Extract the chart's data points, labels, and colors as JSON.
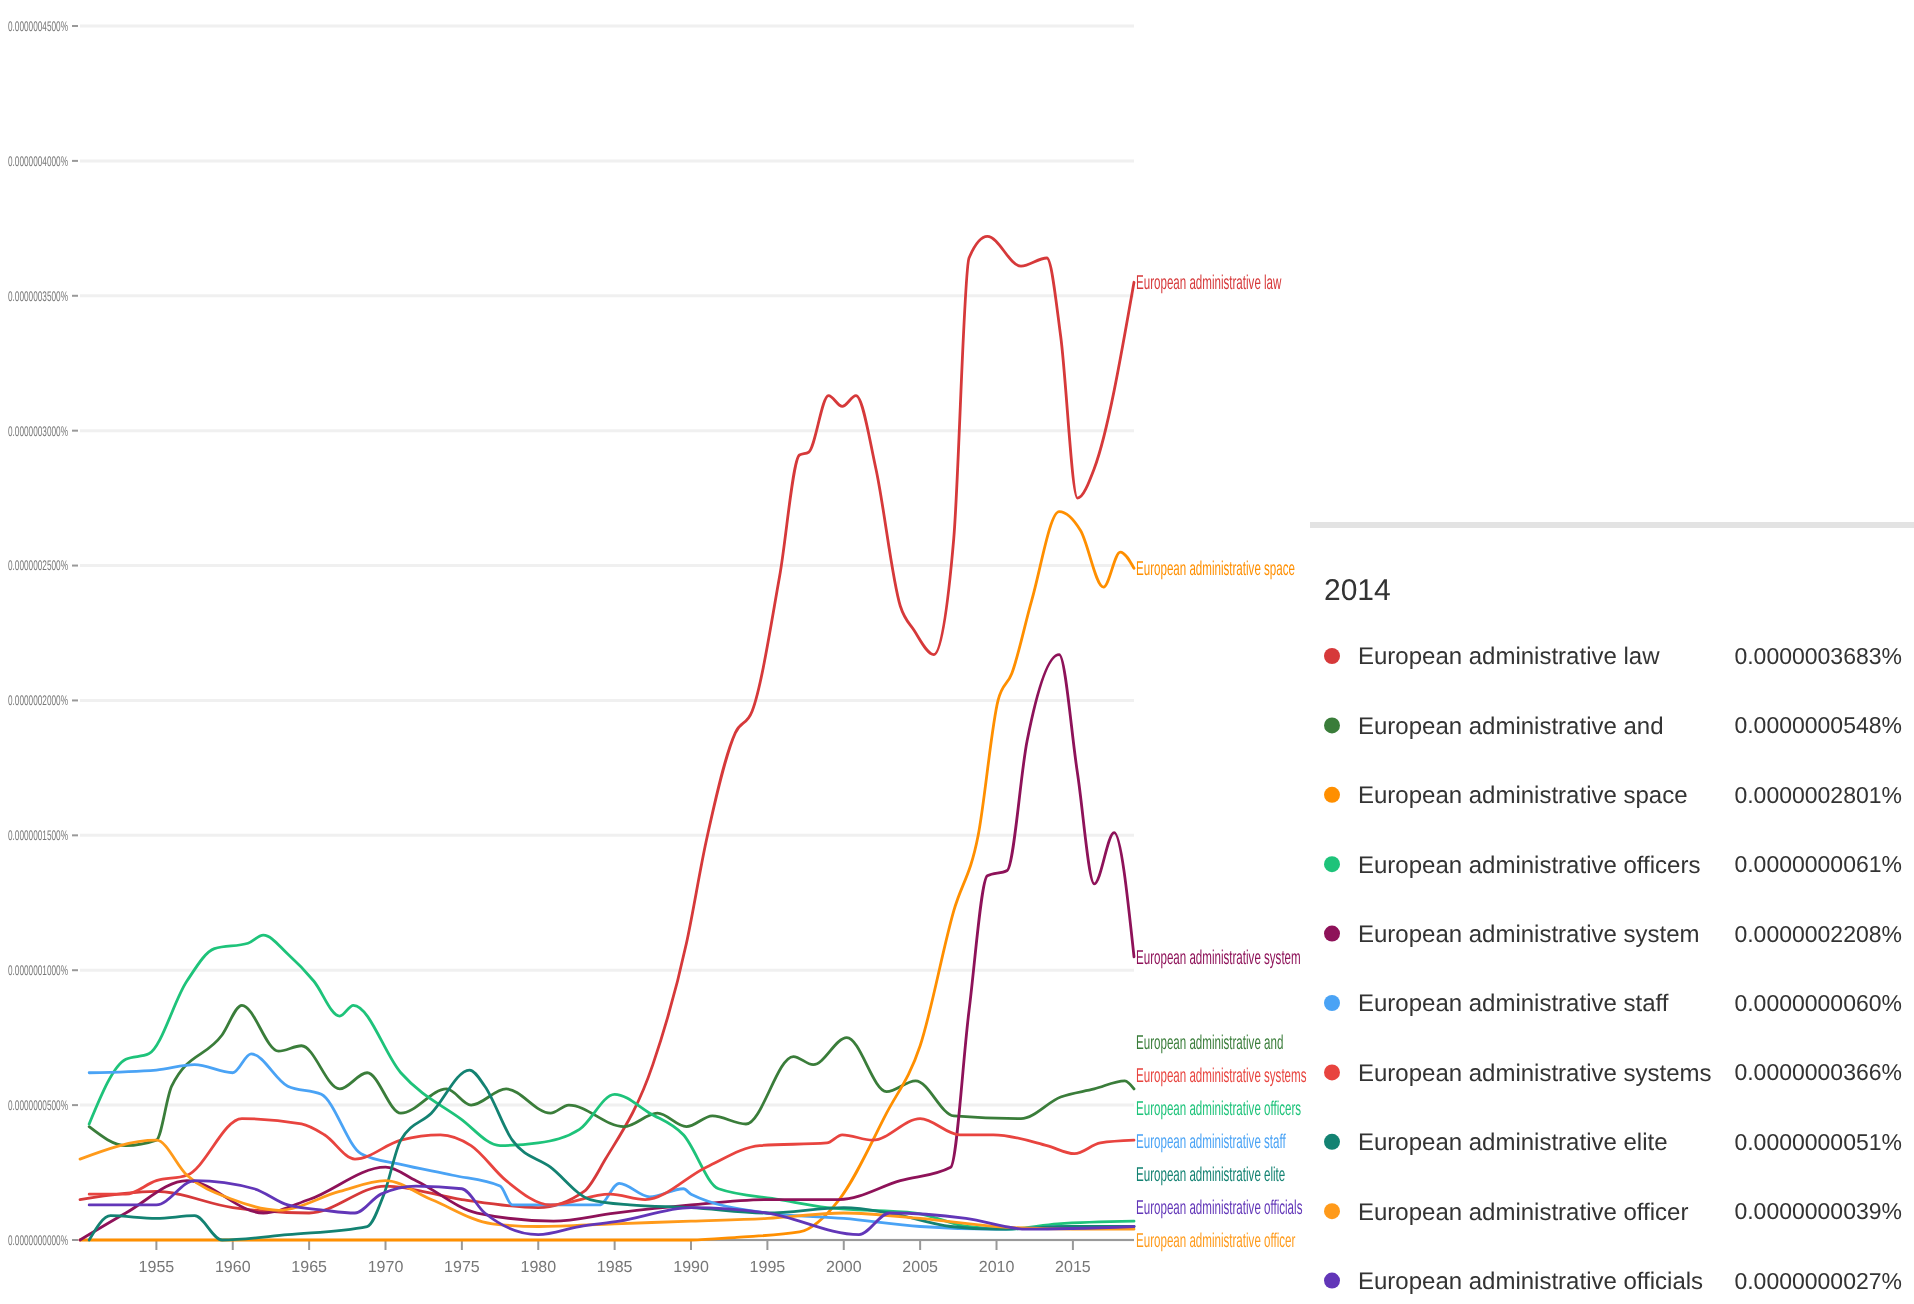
{
  "chart_data": {
    "type": "line",
    "xlim": [
      1950,
      2019
    ],
    "xticks": [
      1955,
      1960,
      1965,
      1970,
      1975,
      1980,
      1985,
      1990,
      1995,
      2000,
      2005,
      2010,
      2015
    ],
    "ylim": [
      0,
      4.5e-07
    ],
    "yticks": [
      {
        "value": 0,
        "label": "0.0000000000%"
      },
      {
        "value": 5e-08,
        "label": "0.0000000500%"
      },
      {
        "value": 1e-07,
        "label": "0.0000001000%"
      },
      {
        "value": 1.5e-07,
        "label": "0.0000001500%"
      },
      {
        "value": 2e-07,
        "label": "0.0000002000%"
      },
      {
        "value": 2.5e-07,
        "label": "0.0000002500%"
      },
      {
        "value": 3e-07,
        "label": "0.0000003000%"
      },
      {
        "value": 3.5e-07,
        "label": "0.0000003500%"
      },
      {
        "value": 4e-07,
        "label": "0.0000004000%"
      },
      {
        "value": 4.5e-07,
        "label": "0.0000004500%"
      }
    ],
    "grid": "y",
    "legend": "right",
    "legend_title": "2014",
    "annotations": [
      "0.0000003683%",
      "0.0000000548%",
      "0.0000002801%",
      "0.0000000061%",
      "0.0000002208%",
      "0.0000000060%",
      "0.0000000366%",
      "0.0000000051%",
      "0.0000000039%",
      "0.0000000027%"
    ],
    "series": [
      {
        "name": "European administrative law",
        "color": "#d6393a",
        "x": [
          1950,
          1955,
          1960,
          1965,
          1970,
          1975,
          1980,
          1983,
          1984.4,
          1987.5,
          1989.7,
          1991,
          1992.9,
          1994,
          1995.8,
          1997.1,
          1997.7,
          1999,
          1999.9,
          2000.8,
          2002.1,
          2003.7,
          2004.6,
          2005.9,
          2007.2,
          2008.2,
          2009.4,
          2011.6,
          2013.3,
          2014.2,
          2015.3,
          2016.4,
          2019
        ],
        "values": [
          1.5e-08,
          1.8e-08,
          1.2e-08,
          1e-08,
          2e-08,
          1.5e-08,
          1.2e-08,
          1.8e-08,
          3e-08,
          6.5e-08,
          1.1e-07,
          1.48e-07,
          1.88e-07,
          1.96e-07,
          2.46e-07,
          2.91e-07,
          2.92e-07,
          3.13e-07,
          3.09e-07,
          3.13e-07,
          2.86e-07,
          2.35e-07,
          2.26e-07,
          2.17e-07,
          2.6e-07,
          3.64e-07,
          3.72e-07,
          3.61e-07,
          3.64e-07,
          3.35e-07,
          2.75e-07,
          2.86e-07,
          3.55e-07
        ]
      },
      {
        "name": "European administrative and",
        "color": "#3a7d3a",
        "x": [
          1950.6,
          1953,
          1955,
          1956,
          1959.3,
          1960.6,
          1963,
          1964.5,
          1967,
          1968.8,
          1971,
          1974,
          1975.6,
          1977.9,
          1980.8,
          1982,
          1985.6,
          1987.8,
          1989.7,
          1991.4,
          1993.6,
          1996.7,
          1998,
          2000.2,
          2002.8,
          2004.7,
          2007.2,
          2011.6,
          2014.2,
          2016.4,
          2018.4,
          2019
        ],
        "values": [
          4.2e-08,
          3.5e-08,
          3.7e-08,
          5.7e-08,
          7.6e-08,
          8.7e-08,
          7e-08,
          7.2e-08,
          5.6e-08,
          6.2e-08,
          4.7e-08,
          5.6e-08,
          5e-08,
          5.6e-08,
          4.7e-08,
          5e-08,
          4.2e-08,
          4.7e-08,
          4.2e-08,
          4.6e-08,
          4.3e-08,
          6.8e-08,
          6.5e-08,
          7.5e-08,
          5.5e-08,
          5.9e-08,
          4.6e-08,
          4.5e-08,
          5.3e-08,
          5.6e-08,
          5.9e-08,
          5.6e-08
        ]
      },
      {
        "name": "European administrative space",
        "color": "#ff8f00",
        "x": [
          1950,
          1960,
          1970,
          1980,
          1990,
          1993,
          1997.1,
          1999.7,
          2002.8,
          2005,
          2007.2,
          2008.8,
          2010.1,
          2011,
          2012.3,
          2014.1,
          2015.5,
          2017,
          2018.1,
          2019
        ],
        "values": [
          0,
          0,
          0,
          0,
          0,
          1e-09,
          3e-09,
          1.5e-08,
          4.7e-08,
          7.2e-08,
          1.22e-07,
          1.5e-07,
          2e-07,
          2.1e-07,
          2.37e-07,
          2.7e-07,
          2.63e-07,
          2.42e-07,
          2.55e-07,
          2.49e-07
        ]
      },
      {
        "name": "European administrative officers",
        "color": "#1ec37a",
        "x": [
          1950.6,
          1953,
          1954.5,
          1957,
          1958.8,
          1961,
          1962,
          1963.6,
          1965.3,
          1967,
          1967.9,
          1971,
          1974.9,
          1977.5,
          1980,
          1982.7,
          1985,
          1987.3,
          1989.5,
          1991.8,
          1995.8,
          1998.9,
          2004.7,
          2008.1,
          2010.7,
          2014,
          2019
        ],
        "values": [
          4.3e-08,
          6.7e-08,
          6.9e-08,
          9.6e-08,
          1.08e-07,
          1.1e-07,
          1.13e-07,
          1.06e-07,
          9.6e-08,
          8.3e-08,
          8.7e-08,
          6.2e-08,
          4.5e-08,
          3.5e-08,
          3.6e-08,
          4.1e-08,
          5.4e-08,
          4.7e-08,
          3.9e-08,
          1.9e-08,
          1.5e-08,
          1.2e-08,
          1e-08,
          5e-09,
          4e-09,
          6e-09,
          7e-09
        ]
      },
      {
        "name": "European administrative system",
        "color": "#8e1259",
        "x": [
          1950,
          1953,
          1957,
          1962,
          1965,
          1970,
          1972,
          1976,
          1981,
          1985,
          1990,
          1995,
          1999.7,
          2003.7,
          2007,
          2008.2,
          2009.4,
          2010.7,
          2012,
          2014.1,
          2015.3,
          2016.4,
          2017.7,
          2019
        ],
        "values": [
          0,
          1e-08,
          2.2e-08,
          1e-08,
          1.5e-08,
          2.7e-08,
          2.2e-08,
          1e-08,
          7e-09,
          1e-08,
          1.3e-08,
          1.5e-08,
          1.5e-08,
          2.2e-08,
          2.7e-08,
          8.5e-08,
          1.35e-07,
          1.37e-07,
          1.85e-07,
          2.17e-07,
          1.73e-07,
          1.32e-07,
          1.51e-07,
          1.05e-07
        ]
      },
      {
        "name": "European administrative staff",
        "color": "#4aa3f5",
        "x": [
          1950.6,
          1955,
          1957.5,
          1960,
          1961.2,
          1963.6,
          1965.8,
          1968.4,
          1971,
          1974.4,
          1977.5,
          1978.3,
          1980.8,
          1984,
          1985.3,
          1987.3,
          1989.5,
          1990,
          1995,
          2000,
          2005,
          2010,
          2015,
          2019
        ],
        "values": [
          6.2e-08,
          6.3e-08,
          6.5e-08,
          6.2e-08,
          6.9e-08,
          5.7e-08,
          5.4e-08,
          3.2e-08,
          2.8e-08,
          2.4e-08,
          2e-08,
          1.3e-08,
          1.3e-08,
          1.3e-08,
          2.1e-08,
          1.6e-08,
          1.9e-08,
          1.7e-08,
          1e-08,
          8e-09,
          5e-09,
          4e-09,
          5e-09,
          5e-09
        ]
      },
      {
        "name": "European administrative systems",
        "color": "#e8443f",
        "x": [
          1950.6,
          1953,
          1955,
          1957,
          1960.6,
          1964.5,
          1966,
          1968,
          1971,
          1973.6,
          1975.6,
          1977.9,
          1980.8,
          1984.7,
          1987,
          1991,
          1994.5,
          1998.9,
          1999.9,
          2001.9,
          2005,
          2007.6,
          2009.8,
          2013.3,
          2015.1,
          2016.8,
          2019
        ],
        "values": [
          1.7e-08,
          1.7e-08,
          2.2e-08,
          2.4e-08,
          4.5e-08,
          4.3e-08,
          3.9e-08,
          3e-08,
          3.7e-08,
          3.9e-08,
          3.5e-08,
          2.2e-08,
          1.3e-08,
          1.7e-08,
          1.5e-08,
          2.7e-08,
          3.5e-08,
          3.6e-08,
          3.9e-08,
          3.7e-08,
          4.5e-08,
          3.9e-08,
          3.9e-08,
          3.5e-08,
          3.2e-08,
          3.6e-08,
          3.7e-08
        ]
      },
      {
        "name": "European administrative elite",
        "color": "#138272",
        "x": [
          1950.6,
          1952,
          1955,
          1957.5,
          1959.3,
          1963.6,
          1968.8,
          1969.9,
          1971,
          1973,
          1975.5,
          1976.5,
          1978.3,
          1980.8,
          1983.4,
          1986,
          1990,
          1995,
          2000,
          2003,
          2007,
          2010,
          2015,
          2019
        ],
        "values": [
          0,
          9e-09,
          8e-09,
          9e-09,
          0,
          2e-09,
          5e-09,
          1.7e-08,
          3.7e-08,
          4.7e-08,
          6.3e-08,
          5.7e-08,
          3.7e-08,
          2.7e-08,
          1.5e-08,
          1.3e-08,
          1.2e-08,
          1e-08,
          1.2e-08,
          1e-08,
          5e-09,
          4e-09,
          5e-09,
          5e-09
        ]
      },
      {
        "name": "European administrative officer",
        "color": "#ff9a1a",
        "x": [
          1950,
          1955,
          1957,
          1960,
          1963,
          1967,
          1970,
          1973,
          1977,
          1980,
          1985,
          1990,
          1995,
          2000,
          2005,
          2010,
          2015,
          2019
        ],
        "values": [
          3e-08,
          3.7e-08,
          2.4e-08,
          1.5e-08,
          1.1e-08,
          1.8e-08,
          2.2e-08,
          1.5e-08,
          6e-09,
          5e-09,
          6e-09,
          7e-09,
          8e-09,
          1e-08,
          8e-09,
          5e-09,
          4e-09,
          4e-09
        ]
      },
      {
        "name": "European administrative officials",
        "color": "#6236b8",
        "x": [
          1950.6,
          1955,
          1957.5,
          1961.4,
          1963.6,
          1966,
          1968,
          1969.7,
          1972,
          1975,
          1976.5,
          1980,
          1982.7,
          1985.3,
          1990,
          1995,
          2001,
          2003,
          2008,
          2012,
          2019
        ],
        "values": [
          1.3e-08,
          1.3e-08,
          2.2e-08,
          1.9e-08,
          1.3e-08,
          1.1e-08,
          1e-08,
          1.7e-08,
          2e-08,
          1.9e-08,
          1e-08,
          2e-09,
          5e-09,
          7e-09,
          1.2e-08,
          1e-08,
          2e-09,
          1e-08,
          8e-09,
          4e-09,
          5e-09
        ]
      }
    ]
  }
}
